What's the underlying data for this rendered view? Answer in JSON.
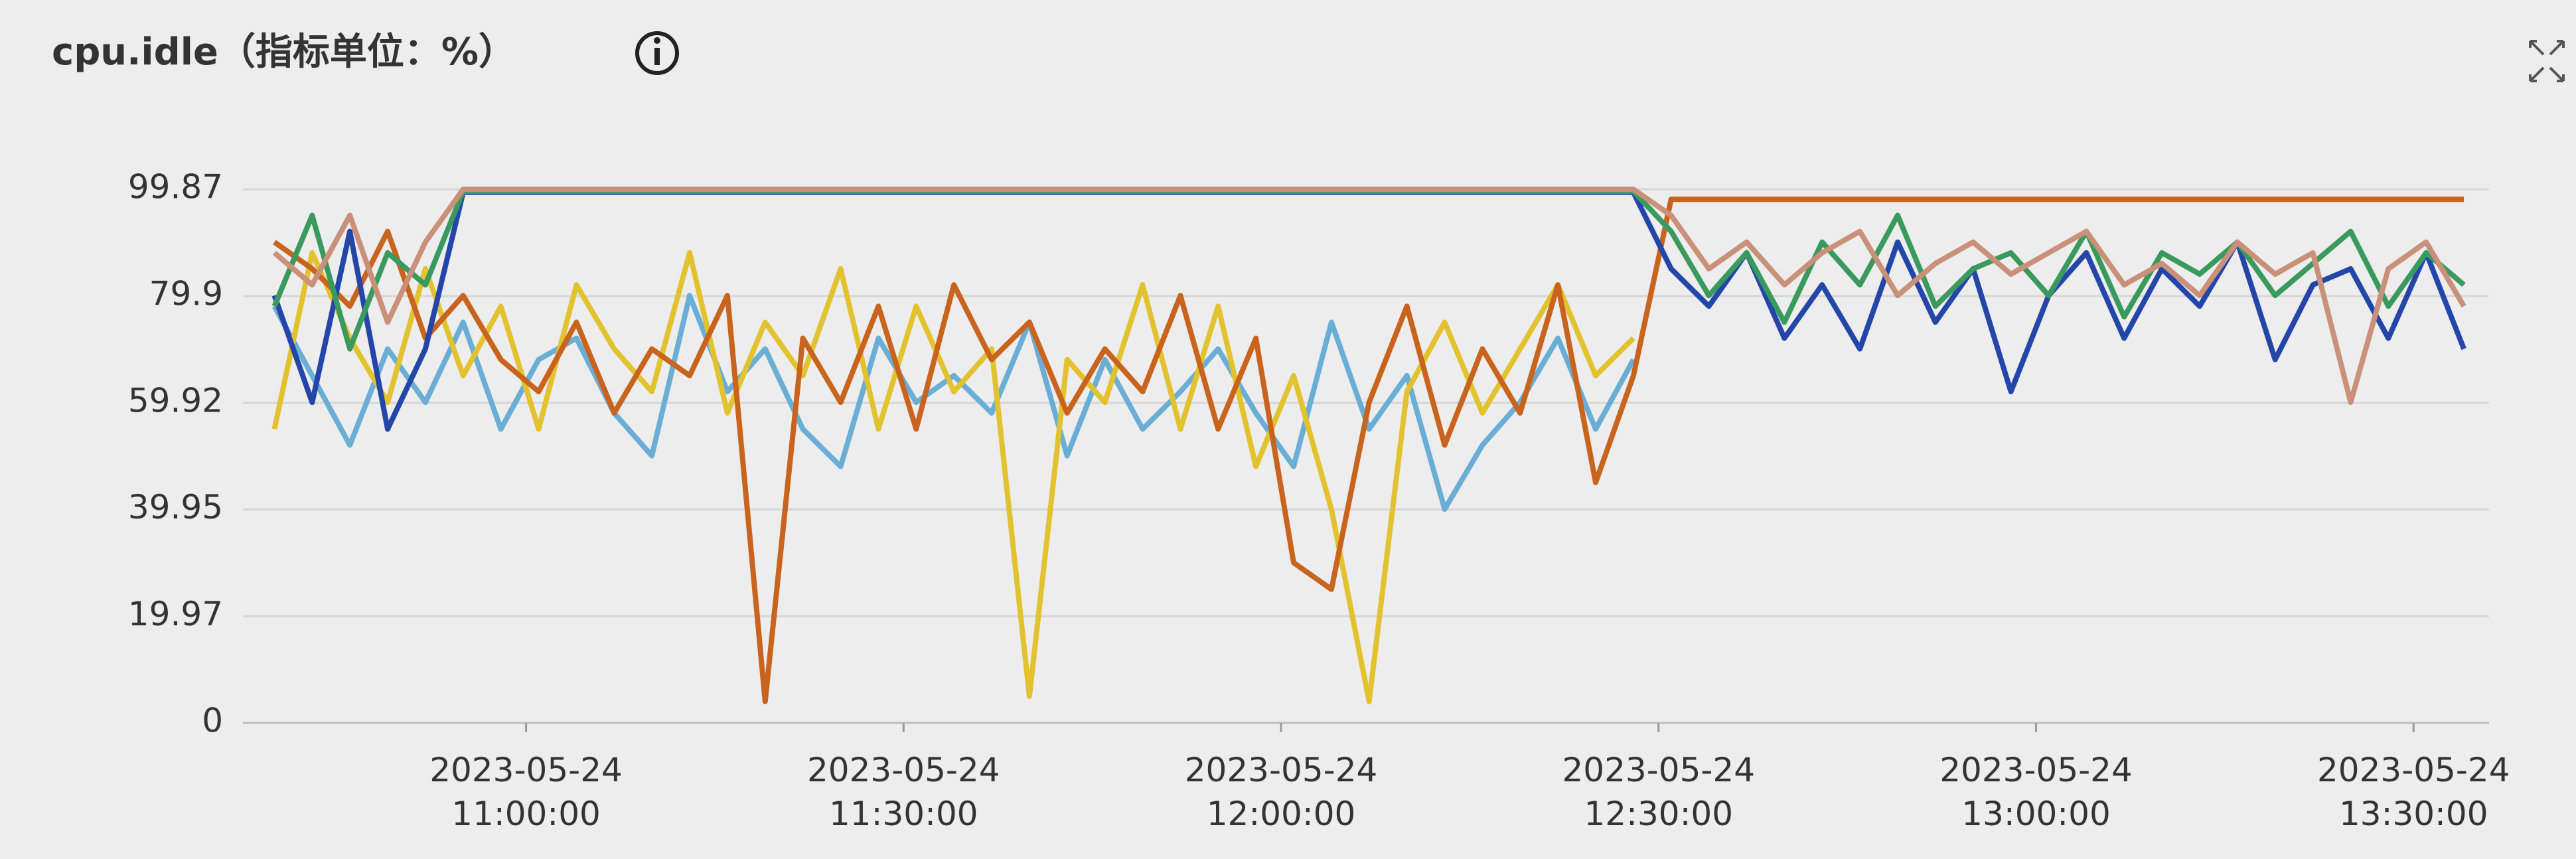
{
  "chart_data": {
    "type": "line",
    "title": "cpu.idle（指标单位：%）",
    "x": [
      "2023-05-24 10:40:00",
      "2023-05-24 10:43:00",
      "2023-05-24 10:46:00",
      "2023-05-24 10:49:00",
      "2023-05-24 10:52:00",
      "2023-05-24 10:55:00",
      "2023-05-24 10:58:00",
      "2023-05-24 11:01:00",
      "2023-05-24 11:04:00",
      "2023-05-24 11:07:00",
      "2023-05-24 11:10:00",
      "2023-05-24 11:13:00",
      "2023-05-24 11:16:00",
      "2023-05-24 11:19:00",
      "2023-05-24 11:22:00",
      "2023-05-24 11:25:00",
      "2023-05-24 11:28:00",
      "2023-05-24 11:31:00",
      "2023-05-24 11:34:00",
      "2023-05-24 11:37:00",
      "2023-05-24 11:40:00",
      "2023-05-24 11:43:00",
      "2023-05-24 11:46:00",
      "2023-05-24 11:49:00",
      "2023-05-24 11:52:00",
      "2023-05-24 11:55:00",
      "2023-05-24 11:58:00",
      "2023-05-24 12:01:00",
      "2023-05-24 12:04:00",
      "2023-05-24 12:07:00",
      "2023-05-24 12:10:00",
      "2023-05-24 12:13:00",
      "2023-05-24 12:16:00",
      "2023-05-24 12:19:00",
      "2023-05-24 12:22:00",
      "2023-05-24 12:25:00",
      "2023-05-24 12:28:00",
      "2023-05-24 12:31:00",
      "2023-05-24 12:34:00",
      "2023-05-24 12:37:00",
      "2023-05-24 12:40:00",
      "2023-05-24 12:43:00",
      "2023-05-24 12:46:00",
      "2023-05-24 12:49:00",
      "2023-05-24 12:52:00",
      "2023-05-24 12:55:00",
      "2023-05-24 12:58:00",
      "2023-05-24 13:01:00",
      "2023-05-24 13:04:00",
      "2023-05-24 13:07:00",
      "2023-05-24 13:10:00",
      "2023-05-24 13:13:00",
      "2023-05-24 13:16:00",
      "2023-05-24 13:19:00",
      "2023-05-24 13:22:00",
      "2023-05-24 13:25:00",
      "2023-05-24 13:28:00",
      "2023-05-24 13:31:00",
      "2023-05-24 13:34:00"
    ],
    "xlim": [
      "2023-05-24 10:37:30",
      "2023-05-24 13:36:00"
    ],
    "xticks": [
      "2023-05-24 11:00:00",
      "2023-05-24 11:30:00",
      "2023-05-24 12:00:00",
      "2023-05-24 12:30:00",
      "2023-05-24 13:00:00",
      "2023-05-24 13:30:00"
    ],
    "ylim": [
      0,
      104
    ],
    "yticks": [
      0,
      19.97,
      39.95,
      59.92,
      79.9,
      99.87
    ],
    "grid": true,
    "series": [
      {
        "color": "#6aaed6",
        "values": [
          78,
          65,
          52,
          70,
          60,
          75,
          55,
          68,
          72,
          58,
          50,
          80,
          62,
          70,
          55,
          48,
          72,
          60,
          65,
          58,
          75,
          50,
          68,
          55,
          62,
          70,
          58,
          48,
          75,
          55,
          65,
          40,
          52,
          60,
          72,
          55,
          68,
          null,
          null,
          null,
          null,
          null,
          null,
          null,
          null,
          null,
          null,
          null,
          null,
          null,
          null,
          null,
          null,
          null,
          null,
          null,
          null,
          null,
          null
        ]
      },
      {
        "color": "#e3c230",
        "values": [
          55,
          88,
          72,
          60,
          85,
          65,
          78,
          55,
          82,
          70,
          62,
          88,
          58,
          75,
          65,
          85,
          55,
          78,
          62,
          70,
          5,
          68,
          60,
          82,
          55,
          78,
          48,
          65,
          40,
          4,
          62,
          75,
          58,
          70,
          82,
          65,
          72,
          null,
          null,
          null,
          null,
          null,
          null,
          null,
          null,
          null,
          null,
          null,
          null,
          null,
          null,
          null,
          null,
          null,
          null,
          null,
          null,
          null,
          null
        ]
      },
      {
        "color": "#c8641e",
        "values": [
          90,
          85,
          78,
          92,
          72,
          80,
          68,
          62,
          75,
          58,
          70,
          65,
          80,
          4,
          72,
          60,
          78,
          55,
          82,
          68,
          75,
          58,
          70,
          62,
          80,
          55,
          72,
          30,
          25,
          60,
          78,
          52,
          70,
          58,
          82,
          45,
          65,
          98,
          98,
          98,
          98,
          98,
          98,
          98,
          98,
          98,
          98,
          98,
          98,
          98,
          98,
          98,
          98,
          98,
          98,
          98,
          98,
          98,
          98
        ]
      },
      {
        "color": "#2346a8",
        "values": [
          80,
          60,
          92,
          55,
          70,
          99.3,
          99.3,
          99.3,
          99.3,
          99.3,
          99.3,
          99.3,
          99.3,
          99.3,
          99.3,
          99.3,
          99.3,
          99.3,
          99.3,
          99.3,
          99.3,
          99.3,
          99.3,
          99.3,
          99.3,
          99.3,
          99.3,
          99.3,
          99.3,
          99.3,
          99.3,
          99.3,
          99.3,
          99.3,
          99.3,
          99.3,
          99.3,
          85,
          78,
          88,
          72,
          82,
          70,
          90,
          75,
          85,
          62,
          80,
          88,
          72,
          85,
          78,
          90,
          68,
          82,
          85,
          72,
          88,
          70
        ]
      },
      {
        "color": "#3a9a5e",
        "values": [
          78,
          95,
          70,
          88,
          82,
          99.5,
          99.5,
          99.5,
          99.5,
          99.5,
          99.5,
          99.5,
          99.5,
          99.5,
          99.5,
          99.5,
          99.5,
          99.5,
          99.5,
          99.5,
          99.5,
          99.5,
          99.5,
          99.5,
          99.5,
          99.5,
          99.5,
          99.5,
          99.5,
          99.5,
          99.5,
          99.5,
          99.5,
          99.5,
          99.5,
          99.5,
          99.5,
          92,
          80,
          88,
          75,
          90,
          82,
          95,
          78,
          85,
          88,
          80,
          92,
          76,
          88,
          84,
          90,
          80,
          86,
          92,
          78,
          88,
          82
        ]
      },
      {
        "color": "#c9907a",
        "values": [
          88,
          82,
          95,
          75,
          90,
          99.87,
          99.87,
          99.87,
          99.87,
          99.87,
          99.87,
          99.87,
          99.87,
          99.87,
          99.87,
          99.87,
          99.87,
          99.87,
          99.87,
          99.87,
          99.87,
          99.87,
          99.87,
          99.87,
          99.87,
          99.87,
          99.87,
          99.87,
          99.87,
          99.87,
          99.87,
          99.87,
          99.87,
          99.87,
          99.87,
          99.87,
          99.87,
          95,
          85,
          90,
          82,
          88,
          92,
          80,
          86,
          90,
          84,
          88,
          92,
          82,
          86,
          80,
          90,
          84,
          88,
          60,
          85,
          90,
          78
        ]
      }
    ]
  }
}
